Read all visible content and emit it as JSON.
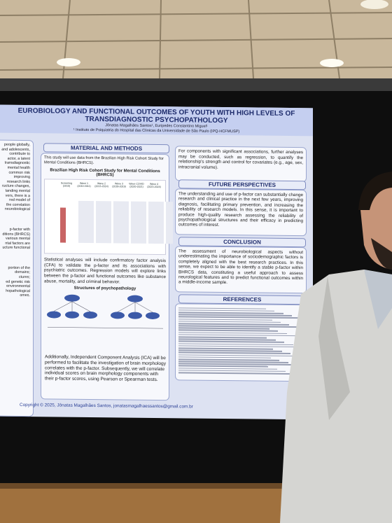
{
  "poster": {
    "title": "EUROBIOLOGY AND FUNCTIONAL OUTCOMES OF YOUTH WITH HIGH LEVELS OF TRANSDIAGNOSTIC PSYCHOPATHOLOGY",
    "authors": "Jônatas Magalhães Santos¹, Euripedes Constantino Miguel¹",
    "affiliation": "¹ Instituto de Psiquiatria do Hospital das Clínicas da Universidade de São Paulo (IPQ-HCFMUSP)",
    "left_fragments": [
      "people globally,",
      "and adolescents,",
      "contribute to",
      "actor, a latent",
      "transdiagnostic",
      "mental health",
      "common risk",
      "improving",
      "research links",
      "ructure changes,",
      "tanding mental",
      "vers, there is a",
      "red model of",
      "the correlation",
      "neurobiological",
      "p-factor with",
      "ditions (BHRCS)",
      "various mental",
      "ntal factors are",
      "ucture functional",
      "portion of the",
      "domains;",
      "ctures;",
      "ed genetic risk",
      "environmental",
      "hopathological",
      "omes."
    ],
    "methods": {
      "heading": "MATERIAL AND METHODS",
      "intro": "This study will use data from the Brazilian High Risk Cohort Study for Mental Conditions (BHRCS).",
      "figure_title": "Brazilian High Risk Cohort Study for Mental Conditions (BHRCS)",
      "waves": [
        "Screening (2010)",
        "Wave 1 (2010-2011)",
        "Wave 2 (2013-2014)",
        "Wave 3 (2018-2019)",
        "Wave COVID (2020-2021)",
        "Wave 4 (2023-2024)"
      ],
      "statistics": "Statistical analyses will include confirmatory factor analysis (CFA) to validate the p-factor and its associations with psychiatric outcomes. Regression models will explore links between the p-factor and functional outcomes like substance abuse, mortality, and criminal behavior.",
      "structures_title": "Structures of psychopathology",
      "ica": "Additionally, Independent Component Analysis (ICA) will be performed to facilitate the investigation of brain morphology correlates with the p-factor. Subsequently, we will correlate individual scores on brain morphology components with their p-factor scores, using Pearson or Spearman tests."
    },
    "components_text": "For components with significant associations, further analyses may be conducted, such as regression, to quantify the relationship's strength and control for covariates (e.g., age, sex, intracranial volume).",
    "future": {
      "heading": "FUTURE PERSPECTIVES",
      "text": "The understanding and use of p-factor can substantially change research and clinical practice in the next few years, improving diagnosis, facilitating primary prevention, and increasing the reliability of research models. In this sense, it is important to produce high-quality research assessing the reliability of psychopathological structures and their efficacy in predicting outcomes of interest."
    },
    "conclusion": {
      "heading": "CONCLUSION",
      "text": "The assessment of neurobiological aspects without underestimating the importance of sociodemographic factors is completely aligned with the best research practices. In this sense, we expect to be able to identify a stable p-factor within BHRCS data, constituting a useful approach to assess neurological features and to predict functional outcomes within a middle-income sample."
    },
    "references": {
      "heading": "REFERENCES"
    },
    "copyright": "Copyright © 2025, Jônatas Magalhães Santos, jonatasmagalhaessantos@gmail.com.br"
  }
}
